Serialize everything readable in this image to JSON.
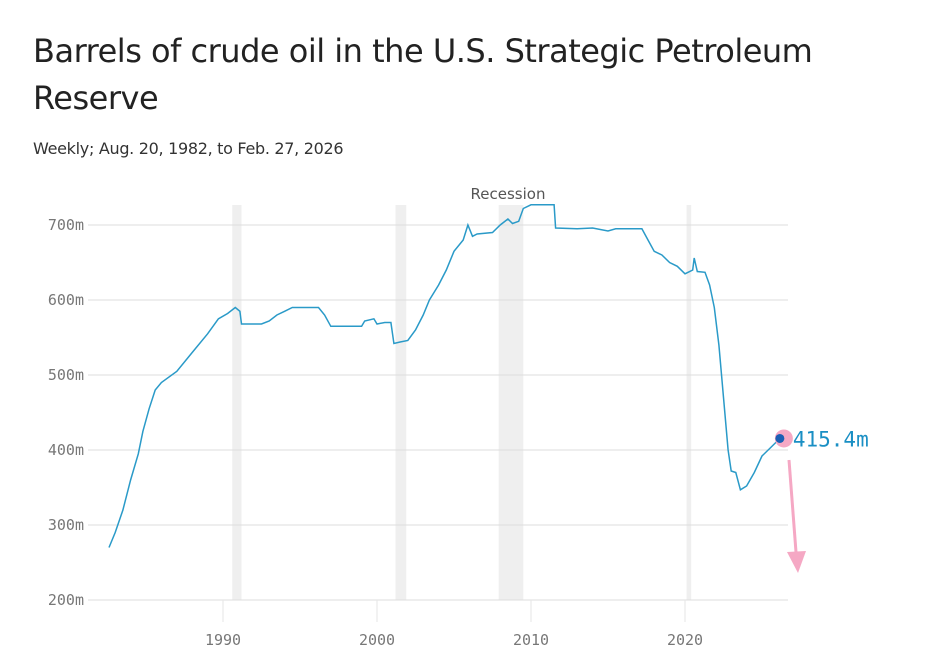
{
  "title": "Barrels of crude oil in the U.S. Strategic Petroleum Reserve",
  "subtitle": "Weekly; Aug. 20, 1982, to Feb. 27, 2026",
  "chart_data": {
    "type": "line",
    "title": "Barrels of crude oil in the U.S. Strategic Petroleum Reserve",
    "subtitle": "Weekly; Aug. 20, 1982, to Feb. 27, 2026",
    "xlim": [
      1981.5,
      2027
    ],
    "ylim": [
      200,
      730
    ],
    "x_ticks": [
      1990,
      2000,
      2010,
      2020
    ],
    "x_tick_labels": [
      "1990",
      "2000",
      "2010",
      "2020"
    ],
    "y_ticks": [
      200,
      300,
      400,
      500,
      600,
      700
    ],
    "y_tick_labels": [
      "200m",
      "300m",
      "400m",
      "500m",
      "600m",
      "700m"
    ],
    "grid": "horizontal",
    "line_color": "#2a9ac8",
    "recession_color": "#efefef",
    "recession_label": "Recession",
    "recessions": [
      [
        1990.6,
        1991.2
      ],
      [
        2001.2,
        2001.9
      ],
      [
        2007.9,
        2009.5
      ],
      [
        2020.1,
        2020.4
      ]
    ],
    "series": [
      {
        "x": [
          1982.6,
          1983,
          1983.5,
          1984,
          1984.5,
          1984.8,
          1985.2,
          1985.6,
          1986,
          1987,
          1988,
          1989,
          1989.7,
          1990.3,
          1990.8,
          1991.1,
          1991.2,
          1992.5,
          1993,
          1993.5,
          1994,
          1994.5,
          1996.2,
          1996.6,
          1997,
          1999,
          1999.2,
          1999.8,
          2000,
          2000.5,
          2000.9,
          2001.1,
          2001.5,
          2002,
          2002.5,
          2003,
          2003.4,
          2004,
          2004.5,
          2005,
          2005.6,
          2005.9,
          2006.2,
          2006.5,
          2007.5,
          2008,
          2008.5,
          2008.8,
          2009.2,
          2009.5,
          2010,
          2011.5,
          2011.6,
          2013,
          2014,
          2015,
          2015.5,
          2017.2,
          2017.6,
          2018,
          2018.5,
          2019,
          2019.5,
          2020,
          2020.5,
          2020.6,
          2020.8,
          2021.3,
          2021.6,
          2021.9,
          2022.2,
          2022.5,
          2022.8,
          2023,
          2023.3,
          2023.6,
          2024,
          2024.5,
          2025,
          2025.5,
          2026.16
        ],
        "y": [
          270,
          290,
          320,
          360,
          395,
          425,
          455,
          480,
          490,
          505,
          530,
          555,
          575,
          582,
          590,
          585,
          568,
          568,
          572,
          580,
          585,
          590,
          590,
          580,
          565,
          565,
          572,
          575,
          568,
          570,
          570,
          542,
          544,
          546,
          560,
          580,
          600,
          620,
          640,
          665,
          680,
          700,
          685,
          688,
          690,
          700,
          708,
          702,
          705,
          722,
          727,
          727,
          696,
          695,
          696,
          692,
          695,
          695,
          680,
          665,
          660,
          650,
          645,
          635,
          640,
          656,
          638,
          637,
          620,
          590,
          540,
          470,
          400,
          372,
          370,
          347,
          352,
          370,
          392,
          402,
          415.4
        ]
      }
    ],
    "last_value_label": "415.4m",
    "marker_color": "#1a5fb4",
    "highlight_color": "#f5a8c4"
  }
}
